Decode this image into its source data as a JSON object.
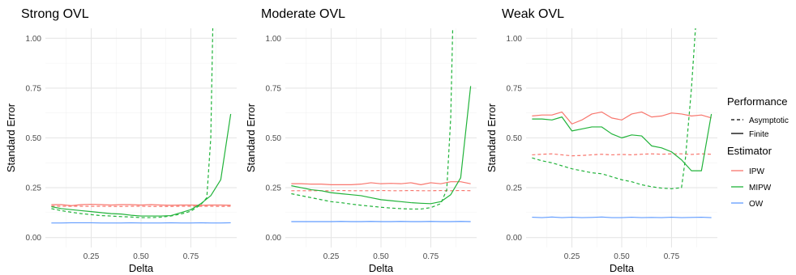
{
  "chart_data": [
    {
      "type": "line",
      "title": "Strong OVL",
      "xlabel": "Delta",
      "ylabel": "Standard Error",
      "xlim": [
        0.02,
        0.98
      ],
      "ylim": [
        -0.05,
        1.05
      ],
      "x_ticks": [
        0.25,
        0.5,
        0.75
      ],
      "x_tick_labels": [
        "0.25",
        "0.50",
        "0.75"
      ],
      "y_ticks": [
        0,
        0.25,
        0.5,
        0.75,
        1
      ],
      "y_tick_labels": [
        "0.00",
        "0.25",
        "0.50",
        "0.75",
        "1.00"
      ],
      "grid": true,
      "series": [
        {
          "estimator": "IPW",
          "performance": "Finite",
          "x": [
            0.05,
            0.1,
            0.15,
            0.2,
            0.25,
            0.3,
            0.35,
            0.4,
            0.45,
            0.5,
            0.55,
            0.6,
            0.65,
            0.7,
            0.75,
            0.8,
            0.85,
            0.9,
            0.95
          ],
          "y": [
            0.165,
            0.165,
            0.16,
            0.165,
            0.167,
            0.165,
            0.163,
            0.165,
            0.165,
            0.163,
            0.165,
            0.163,
            0.162,
            0.163,
            0.163,
            0.162,
            0.163,
            0.163,
            0.162
          ]
        },
        {
          "estimator": "IPW",
          "performance": "Asymptotic",
          "x": [
            0.05,
            0.1,
            0.15,
            0.2,
            0.25,
            0.3,
            0.35,
            0.4,
            0.45,
            0.5,
            0.55,
            0.6,
            0.65,
            0.7,
            0.75,
            0.8,
            0.85,
            0.9,
            0.95
          ],
          "y": [
            0.158,
            0.157,
            0.157,
            0.157,
            0.157,
            0.157,
            0.156,
            0.156,
            0.157,
            0.157,
            0.156,
            0.156,
            0.156,
            0.157,
            0.157,
            0.157,
            0.157,
            0.156,
            0.157
          ]
        },
        {
          "estimator": "MIPW",
          "performance": "Finite",
          "x": [
            0.05,
            0.1,
            0.15,
            0.2,
            0.25,
            0.3,
            0.35,
            0.4,
            0.45,
            0.5,
            0.55,
            0.6,
            0.65,
            0.7,
            0.75,
            0.8,
            0.85,
            0.9,
            0.95
          ],
          "y": [
            0.155,
            0.145,
            0.14,
            0.135,
            0.13,
            0.125,
            0.12,
            0.118,
            0.112,
            0.108,
            0.108,
            0.108,
            0.11,
            0.125,
            0.14,
            0.17,
            0.21,
            0.29,
            0.62
          ]
        },
        {
          "estimator": "MIPW",
          "performance": "Asymptotic",
          "x": [
            0.05,
            0.1,
            0.15,
            0.2,
            0.25,
            0.3,
            0.35,
            0.4,
            0.45,
            0.5,
            0.55,
            0.6,
            0.65,
            0.7,
            0.75,
            0.8,
            0.83,
            0.85,
            0.86
          ],
          "y": [
            0.145,
            0.135,
            0.127,
            0.12,
            0.115,
            0.11,
            0.108,
            0.105,
            0.103,
            0.1,
            0.1,
            0.102,
            0.108,
            0.118,
            0.132,
            0.165,
            0.2,
            0.5,
            1.05
          ]
        },
        {
          "estimator": "OW",
          "performance": "Finite",
          "x": [
            0.05,
            0.1,
            0.15,
            0.2,
            0.25,
            0.3,
            0.35,
            0.4,
            0.45,
            0.5,
            0.55,
            0.6,
            0.65,
            0.7,
            0.75,
            0.8,
            0.85,
            0.9,
            0.95
          ],
          "y": [
            0.073,
            0.073,
            0.074,
            0.074,
            0.074,
            0.073,
            0.073,
            0.073,
            0.074,
            0.073,
            0.073,
            0.073,
            0.074,
            0.073,
            0.073,
            0.074,
            0.073,
            0.073,
            0.074
          ]
        }
      ]
    },
    {
      "type": "line",
      "title": "Moderate OVL",
      "xlabel": "Delta",
      "ylabel": "Standard Error",
      "xlim": [
        0.02,
        0.98
      ],
      "ylim": [
        -0.05,
        1.05
      ],
      "x_ticks": [
        0.25,
        0.5,
        0.75
      ],
      "x_tick_labels": [
        "0.25",
        "0.50",
        "0.75"
      ],
      "y_ticks": [
        0,
        0.25,
        0.5,
        0.75,
        1
      ],
      "y_tick_labels": [
        "0.00",
        "0.25",
        "0.50",
        "0.75",
        "1.00"
      ],
      "grid": true,
      "series": [
        {
          "estimator": "IPW",
          "performance": "Finite",
          "x": [
            0.05,
            0.1,
            0.15,
            0.2,
            0.25,
            0.3,
            0.35,
            0.4,
            0.45,
            0.5,
            0.55,
            0.6,
            0.65,
            0.7,
            0.75,
            0.8,
            0.85,
            0.9,
            0.95
          ],
          "y": [
            0.27,
            0.27,
            0.268,
            0.268,
            0.265,
            0.265,
            0.265,
            0.268,
            0.275,
            0.27,
            0.272,
            0.27,
            0.275,
            0.265,
            0.275,
            0.27,
            0.28,
            0.28,
            0.27
          ]
        },
        {
          "estimator": "IPW",
          "performance": "Asymptotic",
          "x": [
            0.05,
            0.1,
            0.15,
            0.2,
            0.25,
            0.3,
            0.35,
            0.4,
            0.45,
            0.5,
            0.55,
            0.6,
            0.65,
            0.7,
            0.75,
            0.8,
            0.85,
            0.9,
            0.95
          ],
          "y": [
            0.235,
            0.235,
            0.235,
            0.235,
            0.235,
            0.236,
            0.235,
            0.235,
            0.235,
            0.236,
            0.235,
            0.235,
            0.236,
            0.235,
            0.235,
            0.236,
            0.235,
            0.236,
            0.235
          ]
        },
        {
          "estimator": "MIPW",
          "performance": "Finite",
          "x": [
            0.05,
            0.1,
            0.15,
            0.2,
            0.25,
            0.3,
            0.35,
            0.4,
            0.45,
            0.5,
            0.55,
            0.6,
            0.65,
            0.7,
            0.75,
            0.8,
            0.85,
            0.9,
            0.95
          ],
          "y": [
            0.26,
            0.25,
            0.24,
            0.235,
            0.225,
            0.22,
            0.215,
            0.21,
            0.2,
            0.19,
            0.185,
            0.18,
            0.175,
            0.172,
            0.17,
            0.18,
            0.215,
            0.3,
            0.76
          ]
        },
        {
          "estimator": "MIPW",
          "performance": "Asymptotic",
          "x": [
            0.05,
            0.1,
            0.15,
            0.2,
            0.25,
            0.3,
            0.35,
            0.4,
            0.45,
            0.5,
            0.55,
            0.6,
            0.65,
            0.7,
            0.75,
            0.8,
            0.83,
            0.85,
            0.86
          ],
          "y": [
            0.22,
            0.21,
            0.2,
            0.19,
            0.18,
            0.175,
            0.168,
            0.162,
            0.157,
            0.152,
            0.148,
            0.145,
            0.143,
            0.143,
            0.15,
            0.17,
            0.24,
            0.6,
            1.05
          ]
        },
        {
          "estimator": "OW",
          "performance": "Finite",
          "x": [
            0.05,
            0.1,
            0.15,
            0.2,
            0.25,
            0.3,
            0.35,
            0.4,
            0.45,
            0.5,
            0.55,
            0.6,
            0.65,
            0.7,
            0.75,
            0.8,
            0.85,
            0.9,
            0.95
          ],
          "y": [
            0.08,
            0.08,
            0.08,
            0.08,
            0.08,
            0.081,
            0.08,
            0.08,
            0.081,
            0.08,
            0.08,
            0.081,
            0.08,
            0.08,
            0.081,
            0.08,
            0.08,
            0.081,
            0.08
          ]
        }
      ]
    },
    {
      "type": "line",
      "title": "Weak OVL",
      "xlabel": "Delta",
      "ylabel": "Standard Error",
      "xlim": [
        0.02,
        0.98
      ],
      "ylim": [
        -0.05,
        1.05
      ],
      "x_ticks": [
        0.25,
        0.5,
        0.75
      ],
      "x_tick_labels": [
        "0.25",
        "0.50",
        "0.75"
      ],
      "y_ticks": [
        0,
        0.25,
        0.5,
        0.75,
        1
      ],
      "y_tick_labels": [
        "0.00",
        "0.25",
        "0.50",
        "0.75",
        "1.00"
      ],
      "grid": true,
      "series": [
        {
          "estimator": "IPW",
          "performance": "Finite",
          "x": [
            0.05,
            0.1,
            0.15,
            0.2,
            0.25,
            0.3,
            0.35,
            0.4,
            0.45,
            0.5,
            0.55,
            0.6,
            0.65,
            0.7,
            0.75,
            0.8,
            0.85,
            0.9,
            0.95
          ],
          "y": [
            0.61,
            0.615,
            0.615,
            0.63,
            0.57,
            0.59,
            0.62,
            0.63,
            0.6,
            0.59,
            0.62,
            0.63,
            0.605,
            0.61,
            0.625,
            0.62,
            0.61,
            0.615,
            0.6
          ]
        },
        {
          "estimator": "IPW",
          "performance": "Asymptotic",
          "x": [
            0.05,
            0.1,
            0.15,
            0.2,
            0.25,
            0.3,
            0.35,
            0.4,
            0.45,
            0.5,
            0.55,
            0.6,
            0.65,
            0.7,
            0.75,
            0.8,
            0.85,
            0.9,
            0.95
          ],
          "y": [
            0.415,
            0.418,
            0.42,
            0.415,
            0.41,
            0.412,
            0.415,
            0.418,
            0.415,
            0.417,
            0.415,
            0.418,
            0.42,
            0.418,
            0.42,
            0.42,
            0.417,
            0.42,
            0.418
          ]
        },
        {
          "estimator": "MIPW",
          "performance": "Finite",
          "x": [
            0.05,
            0.1,
            0.15,
            0.2,
            0.25,
            0.3,
            0.35,
            0.4,
            0.45,
            0.5,
            0.55,
            0.6,
            0.65,
            0.7,
            0.75,
            0.8,
            0.85,
            0.9,
            0.95
          ],
          "y": [
            0.595,
            0.595,
            0.59,
            0.605,
            0.535,
            0.545,
            0.555,
            0.555,
            0.52,
            0.5,
            0.515,
            0.51,
            0.46,
            0.45,
            0.43,
            0.39,
            0.335,
            0.335,
            0.62
          ]
        },
        {
          "estimator": "MIPW",
          "performance": "Asymptotic",
          "x": [
            0.05,
            0.1,
            0.15,
            0.2,
            0.25,
            0.3,
            0.35,
            0.4,
            0.45,
            0.5,
            0.55,
            0.6,
            0.65,
            0.7,
            0.75,
            0.8,
            0.82,
            0.85,
            0.87
          ],
          "y": [
            0.4,
            0.385,
            0.375,
            0.36,
            0.345,
            0.335,
            0.325,
            0.32,
            0.305,
            0.29,
            0.28,
            0.265,
            0.255,
            0.248,
            0.245,
            0.25,
            0.4,
            0.75,
            1.05
          ]
        },
        {
          "estimator": "OW",
          "performance": "Finite",
          "x": [
            0.05,
            0.1,
            0.15,
            0.2,
            0.25,
            0.3,
            0.35,
            0.4,
            0.45,
            0.5,
            0.55,
            0.6,
            0.65,
            0.7,
            0.75,
            0.8,
            0.85,
            0.9,
            0.95
          ],
          "y": [
            0.102,
            0.1,
            0.103,
            0.1,
            0.102,
            0.1,
            0.101,
            0.103,
            0.1,
            0.1,
            0.102,
            0.1,
            0.101,
            0.1,
            0.102,
            0.1,
            0.101,
            0.102,
            0.1
          ]
        }
      ]
    }
  ],
  "legend": {
    "placement": "right",
    "performance": {
      "title": "Performance",
      "items": [
        {
          "label": "Asymptotic",
          "dash": "dashed"
        },
        {
          "label": "Finite",
          "dash": "solid"
        }
      ]
    },
    "estimator": {
      "title": "Estimator",
      "items": [
        {
          "label": "IPW",
          "color": "#F8766D"
        },
        {
          "label": "MIPW",
          "color": "#21B33A"
        },
        {
          "label": "OW",
          "color": "#619CFF"
        }
      ]
    }
  },
  "colors": {
    "IPW": "#F8766D",
    "MIPW": "#21B33A",
    "OW": "#619CFF",
    "grid_major": "#e6e6e6",
    "grid_minor": "#f2f2f2"
  }
}
